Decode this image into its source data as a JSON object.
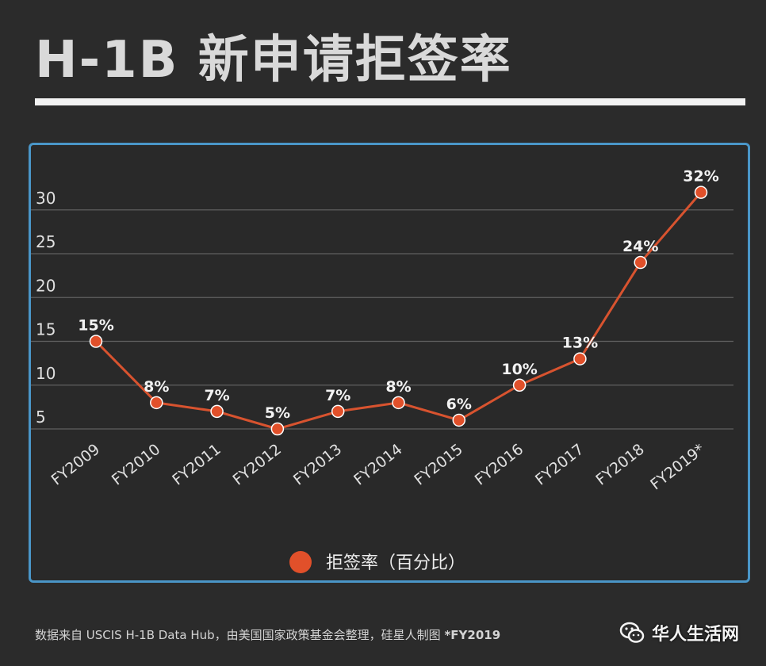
{
  "title": "H-1B 新申请拒签率",
  "footer": {
    "text": "数据来自 USCIS H-1B Data Hub，由美国国家政策基金会整理，硅星人制图",
    "note": "*FY2019"
  },
  "watermark": {
    "text": "华人生活网"
  },
  "colors": {
    "series": "#e1502a",
    "line": "#d8532f",
    "grid": "#606060",
    "border": "#4a96c8"
  },
  "chart_data": {
    "type": "line",
    "categories": [
      "FY2009",
      "FY2010",
      "FY2011",
      "FY2012",
      "FY2013",
      "FY2014",
      "FY2015",
      "FY2016",
      "FY2017",
      "FY2018",
      "FY2019*"
    ],
    "series": [
      {
        "name": "拒签率（百分比）",
        "values": [
          15,
          8,
          7,
          5,
          7,
          8,
          6,
          10,
          13,
          24,
          32
        ],
        "labels": [
          "15%",
          "8%",
          "7%",
          "5%",
          "7%",
          "8%",
          "6%",
          "10%",
          "13%",
          "24%",
          "32%"
        ]
      }
    ],
    "yticks": [
      5,
      10,
      15,
      20,
      25,
      30
    ],
    "ylim": [
      5,
      30
    ],
    "grid": true,
    "legend": "bottom-center"
  }
}
